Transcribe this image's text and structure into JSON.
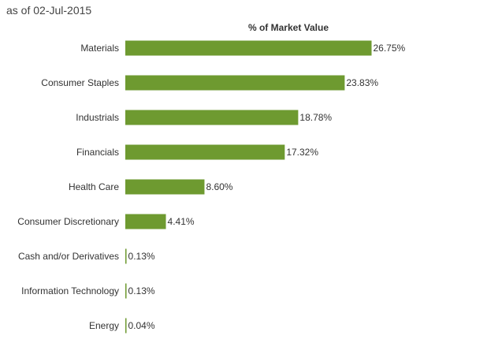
{
  "header": {
    "as_of": "as of 02-Jul-2015"
  },
  "chart_data": {
    "type": "bar",
    "orientation": "horizontal",
    "title": "% of Market Value",
    "categories": [
      "Materials",
      "Consumer Staples",
      "Industrials",
      "Financials",
      "Health Care",
      "Consumer Discretionary",
      "Cash and/or Derivatives",
      "Information Technology",
      "Energy"
    ],
    "values": [
      26.75,
      23.83,
      18.78,
      17.32,
      8.6,
      4.41,
      0.13,
      0.13,
      0.04
    ],
    "value_labels": [
      "26.75%",
      "23.83%",
      "18.78%",
      "17.32%",
      "8.60%",
      "4.41%",
      "0.13%",
      "0.13%",
      "0.04%"
    ],
    "bar_color": "#6e9a30",
    "grid": false,
    "legend": "none"
  }
}
